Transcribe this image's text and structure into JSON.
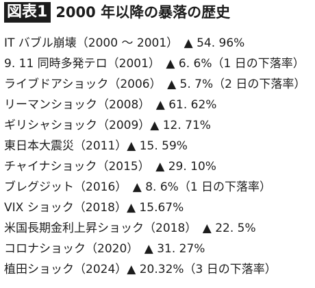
{
  "header": {
    "badge": "図表1",
    "title": "2000 年以降の暴落の歴史"
  },
  "rows": [
    "IT バブル崩壊（2000 〜 2001）　▲ 54. 96%",
    "9. 11 同時多発テロ（2001）　▲ 6. 6%（1 日の下落率）",
    "ライブドアショック（2006）　▲ 5. 7%（2 日の下落率）",
    "リーマンショック（2008）　▲ 61. 62%",
    "ギリシャショック（2009）▲ 12. 71%",
    "東日本大震災（2011）▲ 15. 59%",
    "チャイナショック（2015）　▲ 29. 10%",
    "ブレグジット（2016）　▲ 8. 6%（1 日の下落率）",
    "VIX ショック（2018）▲ 15.67%",
    "米国長期金利上昇ショック（2018）　▲ 22. 5%",
    "コロナショック（2020）　▲ 31. 27%",
    "植田ショック（2024）▲ 20.32%（3 日の下落率）"
  ]
}
